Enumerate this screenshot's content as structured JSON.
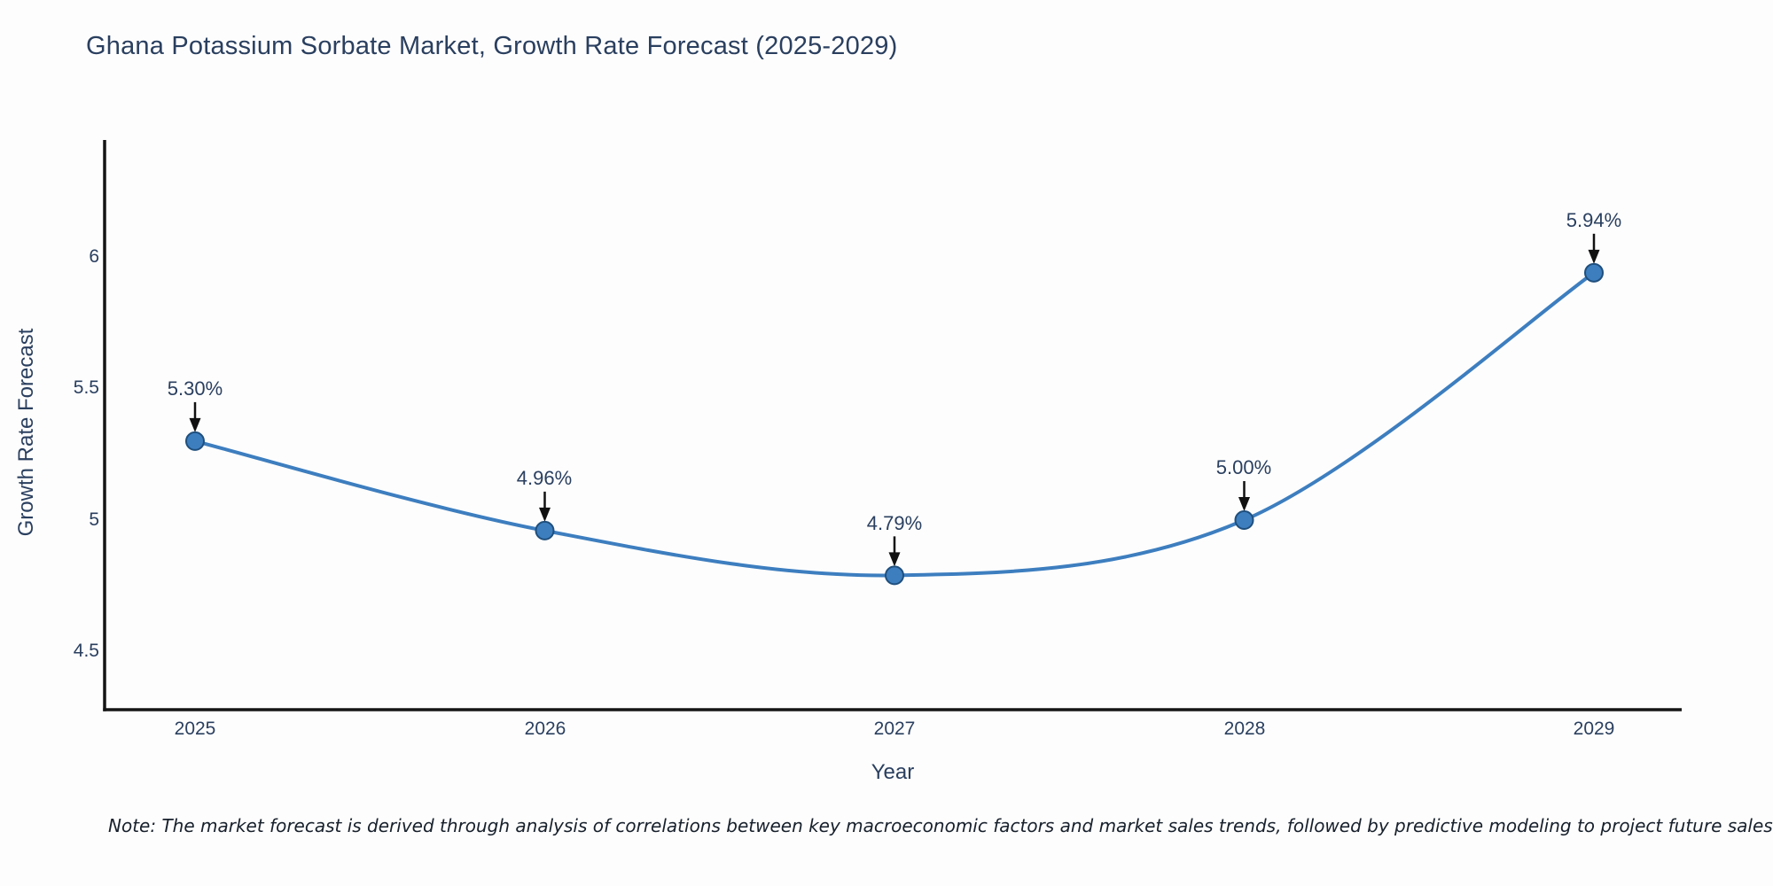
{
  "chart_data": {
    "type": "line",
    "title": "Ghana Potassium Sorbate Market, Growth Rate Forecast (2025-2029)",
    "xlabel": "Year",
    "ylabel": "Growth Rate Forecast",
    "categories": [
      "2025",
      "2026",
      "2027",
      "2028",
      "2029"
    ],
    "values": [
      5.3,
      4.96,
      4.79,
      5.0,
      5.94
    ],
    "labels": [
      "5.30%",
      "4.96%",
      "4.79%",
      "5.00%",
      "5.94%"
    ],
    "series": [
      {
        "name": "Growth Rate Forecast",
        "values": [
          5.3,
          4.96,
          4.79,
          5.0,
          5.94
        ]
      }
    ],
    "yticks": [
      "6",
      "5.5",
      "5",
      "4.5"
    ],
    "ytick_values": [
      6,
      5.5,
      5,
      4.5
    ],
    "ylim": [
      4.28,
      6.44
    ],
    "xlim": [
      2024.74,
      2029.25
    ],
    "grid": false,
    "legend": "none",
    "line_shape": "spline",
    "annotation_style": "label-above-with-down-arrow"
  },
  "note": {
    "text": "Note: The market forecast is derived through analysis of correlations between key macroeconomic factors and market sales trends, followed by predictive modeling to project future sales"
  },
  "colors": {
    "line": "#3d7ebf",
    "marker_fill": "#3d7ebf",
    "marker_edge": "#1f4f7d",
    "axis": "#151515",
    "arrow": "#111111",
    "text": "#2a3f5f",
    "background": "#fdfdfd"
  }
}
